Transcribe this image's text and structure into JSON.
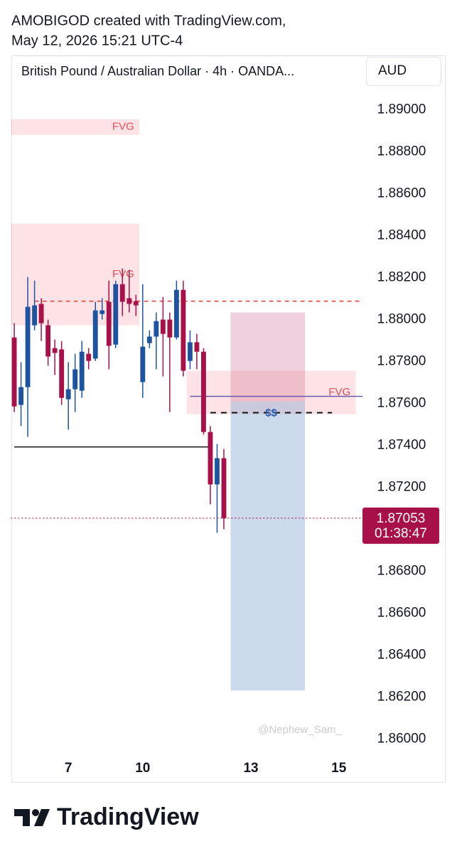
{
  "credit": [
    "AMOBIGOD created with TradingView.com,",
    "May 12, 2026 15:21 UTC-4"
  ],
  "brand": "TradingView",
  "chart_data": {
    "type": "candlestick",
    "title": "British Pound / Australian Dollar · 4h · OANDA...",
    "currency": "AUD",
    "categories": [
      null,
      null,
      null,
      null,
      null,
      null,
      null,
      null,
      "7",
      null,
      null,
      null,
      null,
      null,
      null,
      null,
      null,
      null,
      null,
      "10",
      null,
      null,
      null,
      null,
      null,
      null,
      null,
      null,
      null,
      null,
      null,
      null,
      null,
      null,
      null,
      "13",
      null,
      null,
      null,
      null,
      null,
      null,
      null,
      null,
      null,
      null,
      null,
      null,
      "15",
      null,
      null,
      null
    ],
    "open": [
      1.87915,
      1.87593,
      1.87678,
      1.87973,
      1.88075,
      1.87973,
      1.87864,
      1.87858,
      1.8762,
      1.87668,
      1.87661,
      1.87837,
      1.87814,
      1.88027,
      1.88085,
      1.87881,
      1.88169,
      1.88102,
      1.88088,
      1.87702,
      1.87888,
      1.87919,
      1.88,
      1.88,
      1.87915,
      1.88142,
      1.87803,
      1.87892,
      1.87847,
      1.87464,
      1.87214,
      1.87339,
      null,
      null,
      null,
      null,
      null,
      null,
      null,
      null,
      null,
      null,
      null,
      null,
      null,
      null,
      null,
      null,
      null,
      null,
      null,
      null
    ],
    "high": [
      1.87983,
      1.87797,
      1.88203,
      1.88186,
      1.88102,
      1.88,
      1.87905,
      1.87898,
      1.87797,
      1.87837,
      1.87898,
      1.87864,
      1.88085,
      1.88102,
      1.88186,
      1.88186,
      1.88244,
      1.88237,
      1.88119,
      1.88169,
      1.87949,
      1.88034,
      1.88108,
      1.88034,
      1.88186,
      1.88186,
      1.87949,
      1.87932,
      1.87864,
      1.87492,
      1.87407,
      1.87383,
      null,
      null,
      null,
      null,
      null,
      null,
      null,
      null,
      null,
      null,
      null,
      null,
      null,
      null,
      null,
      null,
      null,
      null,
      null,
      null
    ],
    "low": [
      1.87559,
      1.87492,
      1.87441,
      1.87949,
      1.87898,
      1.8778,
      1.87736,
      1.87593,
      1.87475,
      1.87559,
      1.87627,
      1.87763,
      1.87803,
      1.88,
      1.87763,
      1.87864,
      1.88017,
      1.88034,
      1.88017,
      1.87627,
      1.87864,
      1.87763,
      1.87729,
      1.87559,
      1.87905,
      1.87729,
      1.87763,
      1.87763,
      1.87451,
      1.87119,
      1.86983,
      1.87,
      null,
      null,
      null,
      null,
      null,
      null,
      null,
      null,
      null,
      null,
      null,
      null,
      null,
      null,
      null,
      null,
      null,
      null,
      null,
      null
    ],
    "close": [
      1.87586,
      1.87678,
      1.88061,
      1.88068,
      1.87983,
      1.87824,
      1.87841,
      1.87627,
      1.87668,
      1.87763,
      1.87847,
      1.87803,
      1.88044,
      1.88044,
      1.87875,
      1.88169,
      1.88085,
      1.88075,
      1.88068,
      1.87871,
      1.87919,
      1.87993,
      1.87932,
      1.87915,
      1.88142,
      1.87756,
      1.87892,
      1.87847,
      1.87464,
      1.87214,
      1.87339,
      1.87053,
      null,
      null,
      null,
      null,
      null,
      null,
      null,
      null,
      null,
      null,
      null,
      null,
      null,
      null,
      null,
      null,
      null,
      null,
      null,
      null
    ],
    "up_color": "#1e53a0",
    "down_color": "#a8104a",
    "ylim": [
      1.8593,
      1.8926
    ],
    "yticks": [
      {
        "value": 1.86,
        "label": "1.86000"
      },
      {
        "value": 1.862,
        "label": "1.86200"
      },
      {
        "value": 1.864,
        "label": "1.86400"
      },
      {
        "value": 1.866,
        "label": "1.86600"
      },
      {
        "value": 1.868,
        "label": "1.86800"
      },
      {
        "value": 1.87,
        "label": "1.87000"
      },
      {
        "value": 1.872,
        "label": "1.87200"
      },
      {
        "value": 1.874,
        "label": "1.87400"
      },
      {
        "value": 1.876,
        "label": "1.87600"
      },
      {
        "value": 1.878,
        "label": "1.87800"
      },
      {
        "value": 1.88,
        "label": "1.88000"
      },
      {
        "value": 1.882,
        "label": "1.88200"
      },
      {
        "value": 1.884,
        "label": "1.88400"
      },
      {
        "value": 1.886,
        "label": "1.88600"
      },
      {
        "value": 1.888,
        "label": "1.88800"
      },
      {
        "value": 1.89,
        "label": "1.89000"
      }
    ],
    "last_price": 1.87053,
    "countdown": "01:38:47",
    "zones": [
      {
        "label": "FVG",
        "top": 1.88956,
        "bottom": 1.88881,
        "from": 0,
        "to": 19
      },
      {
        "label": "FVG",
        "top": 1.88458,
        "bottom": 1.87973,
        "from": 0,
        "to": 19
      },
      {
        "label": "FVG",
        "top": 1.87756,
        "bottom": 1.87549,
        "from": 26,
        "to": 51
      }
    ],
    "position": {
      "entry": 1.8761,
      "stop": 1.88034,
      "target": 1.86231,
      "from": 32,
      "to": 43
    },
    "lines": [
      {
        "price": 1.88088,
        "from": 3,
        "to": 52,
        "color": "#e03c3c",
        "dash": true
      },
      {
        "price": 1.87634,
        "from": 26,
        "to": 52,
        "color": "#6a5aa8",
        "dash": false
      },
      {
        "price": 1.87393,
        "from": 0,
        "to": 29,
        "color": "#111111",
        "dash": false
      }
    ],
    "liquidity": {
      "label": "$$",
      "price": 1.87556,
      "from": 29,
      "to": 47
    },
    "watermark": "@Nephew_Sam_"
  }
}
